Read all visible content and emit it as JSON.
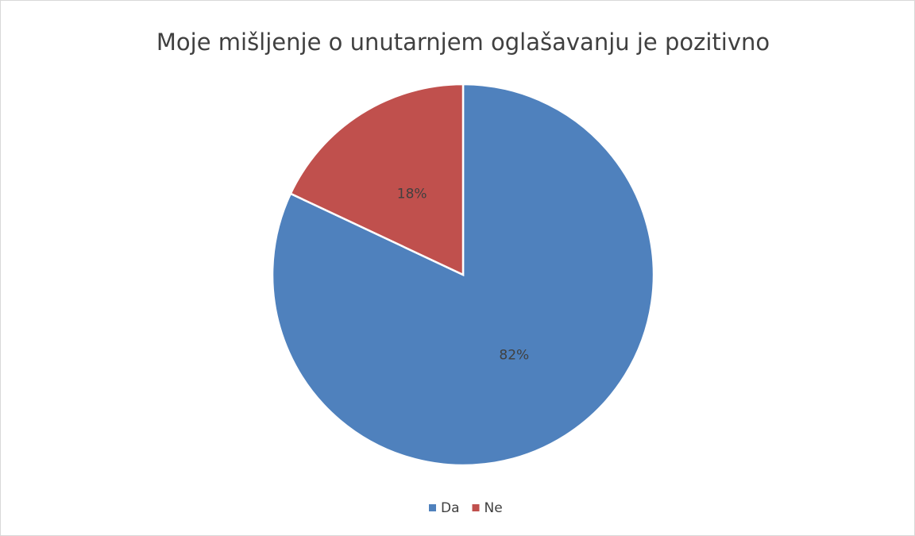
{
  "chart_data": {
    "type": "pie",
    "title": "Moje mišljenje o unutarnjem oglašavanju je pozitivno",
    "categories": [
      "Da",
      "Ne"
    ],
    "values": [
      82,
      18
    ],
    "value_labels": [
      "82%",
      "18%"
    ],
    "colors": [
      "#4f81bd",
      "#c0504d"
    ],
    "legend": "bottom"
  }
}
